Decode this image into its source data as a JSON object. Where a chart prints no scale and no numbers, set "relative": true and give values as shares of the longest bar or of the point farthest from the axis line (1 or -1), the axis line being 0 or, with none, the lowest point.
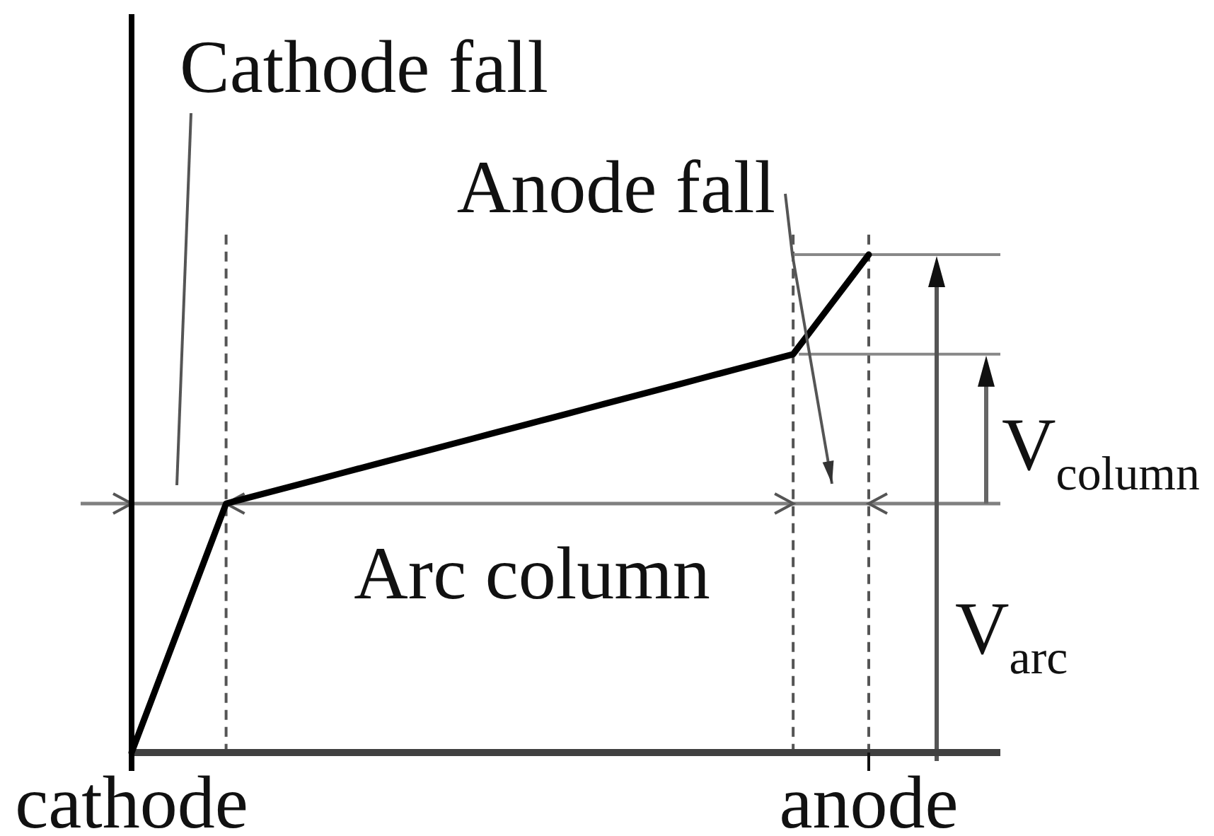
{
  "chart_data": {
    "type": "line",
    "relative": true,
    "categories": [
      "cathode",
      null,
      null,
      null,
      null,
      null,
      null,
      null,
      null,
      null,
      null,
      null,
      null,
      null,
      null,
      null,
      null,
      null,
      null,
      null,
      null,
      null,
      null,
      null,
      null,
      null,
      null,
      null,
      null,
      null,
      null,
      null,
      null,
      null,
      null,
      null,
      null,
      null,
      null,
      "anode"
    ],
    "values": [
      0,
      0.1,
      0.2,
      0.3,
      0.4,
      0.5,
      0.51,
      0.52,
      0.53,
      0.54,
      0.55,
      0.56,
      0.57,
      0.58,
      0.59,
      0.6,
      0.61,
      0.62,
      0.63,
      0.64,
      0.65,
      0.66,
      0.67,
      0.68,
      0.69,
      0.7,
      0.71,
      0.72,
      0.73,
      0.74,
      0.75,
      0.76,
      0.77,
      0.78,
      0.79,
      0.8,
      0.85,
      0.9,
      0.95,
      1
    ],
    "color": "#000000",
    "grid": "x",
    "ref_lines": [
      {
        "axis": "y",
        "value": 0.5,
        "color": "#808080"
      }
    ],
    "annotations": [
      "Cathode fall",
      "Anode fall",
      "Arc column",
      "V$_{column}$",
      "V$_{arc}$"
    ]
  }
}
